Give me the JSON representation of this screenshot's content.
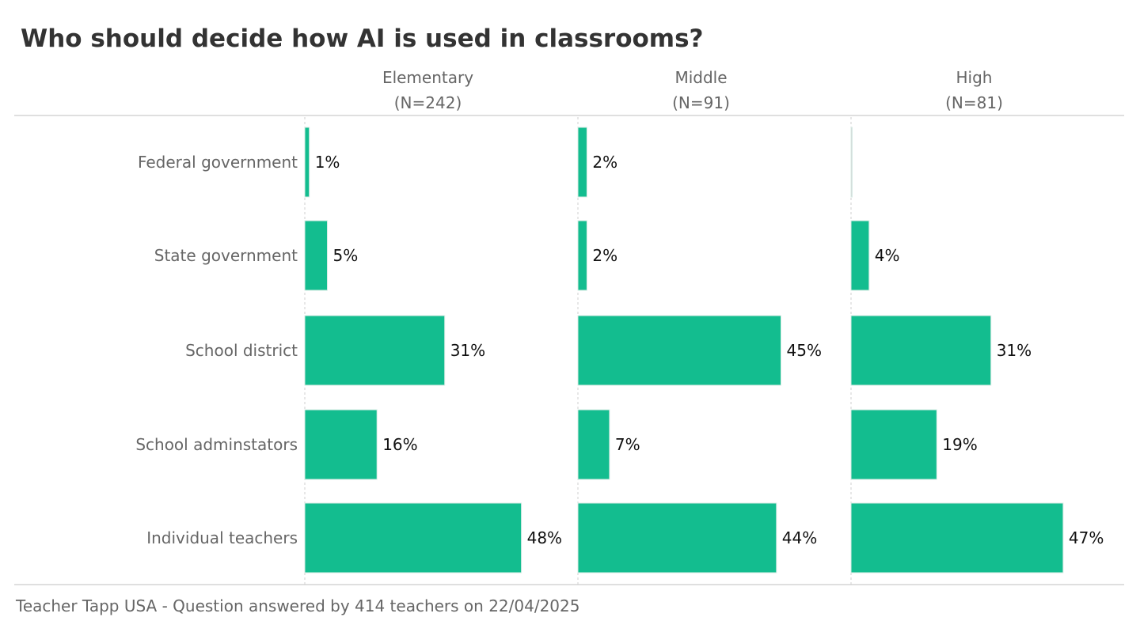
{
  "chart_data": {
    "type": "bar",
    "orientation": "horizontal",
    "layout": "small-multiples",
    "title": "Who should decide how AI is used in classrooms?",
    "footer": "Teacher Tapp USA - Question answered by 414 teachers on 22/04/2025",
    "categories": [
      "Federal government",
      "State government",
      "School district",
      "School adminstators",
      "Individual teachers"
    ],
    "panels": [
      {
        "name": "Elementary",
        "n_label": "(N=242)",
        "values": [
          1,
          5,
          31,
          16,
          48
        ],
        "labels": [
          "1%",
          "5%",
          "31%",
          "16%",
          "48%"
        ]
      },
      {
        "name": "Middle",
        "n_label": "(N=91)",
        "values": [
          2,
          2,
          45,
          7,
          44
        ],
        "labels": [
          "2%",
          "2%",
          "45%",
          "7%",
          "44%"
        ]
      },
      {
        "name": "High",
        "n_label": "(N=81)",
        "values": [
          0,
          4,
          31,
          19,
          47
        ],
        "labels": [
          "",
          "4%",
          "31%",
          "19%",
          "47%"
        ]
      }
    ],
    "units": "%",
    "xlim": [
      0,
      56
    ],
    "grid": false,
    "legend": "none",
    "colors": {
      "bar": "#13bd8f",
      "bar_edge": "#d9ece6",
      "title": "#333333",
      "label": "#666666",
      "value": "#111111",
      "rule": "#cccccc"
    }
  }
}
